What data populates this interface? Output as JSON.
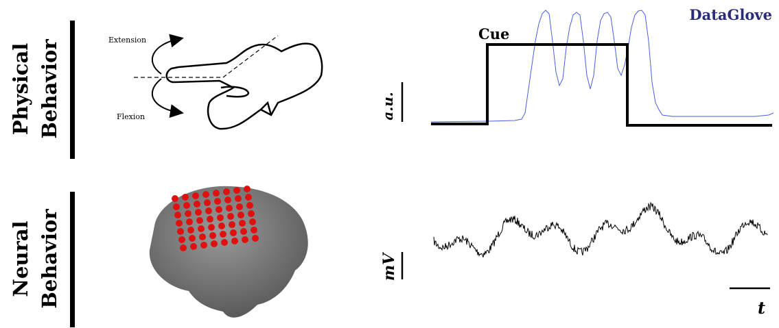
{
  "physical": {
    "label_line1": "Physical",
    "label_line2": "Behavior",
    "extension": "Extension",
    "flexion": "Flexion",
    "cue": "Cue",
    "sensor": "DataGlove",
    "unit": "a.u."
  },
  "neural": {
    "label_line1": "Neural",
    "label_line2": "Behavior",
    "unit": "mV",
    "time": "t"
  }
}
